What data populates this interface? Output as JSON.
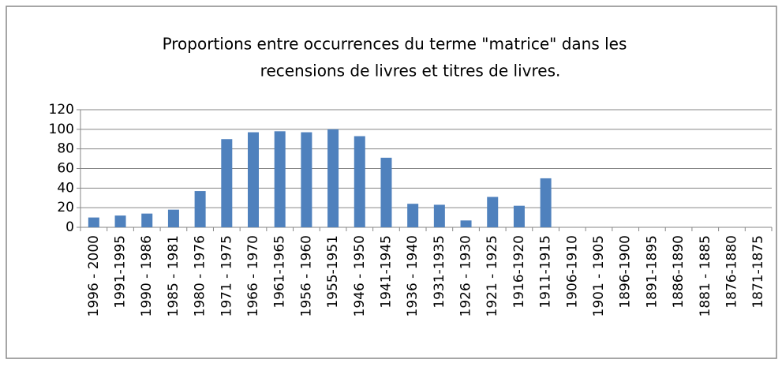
{
  "chart_data": {
    "type": "bar",
    "title": [
      "Proportions entre occurrences du terme \"matrice\" dans les",
      "recensions de livres et titres de livres."
    ],
    "categories": [
      "1996 - 2000",
      "1991-1995",
      "1990 - 1986",
      "1985 - 1981",
      "1980 - 1976",
      "1971 - 1975",
      "1966 - 1970",
      "1961-1965",
      "1956 - 1960",
      "1955-1951",
      "1946 - 1950",
      "1941-1945",
      "1936 - 1940",
      "1931-1935",
      "1926 - 1930",
      "1921 - 1925",
      "1916-1920",
      "1911-1915",
      "1906-1910",
      "1901 - 1905",
      "1896-1900",
      "1891-1895",
      "1886-1890",
      "1881 - 1885",
      "1876-1880",
      "1871-1875"
    ],
    "values": [
      10,
      12,
      14,
      18,
      37,
      90,
      97,
      98,
      97,
      100,
      93,
      71,
      24,
      23,
      7,
      31,
      22,
      50,
      null,
      null,
      null,
      null,
      null,
      null,
      null,
      null
    ],
    "color": "#4f81bd",
    "ylim": [
      0,
      120
    ],
    "yticks": [
      0,
      20,
      40,
      60,
      80,
      100,
      120
    ],
    "grid": true
  }
}
